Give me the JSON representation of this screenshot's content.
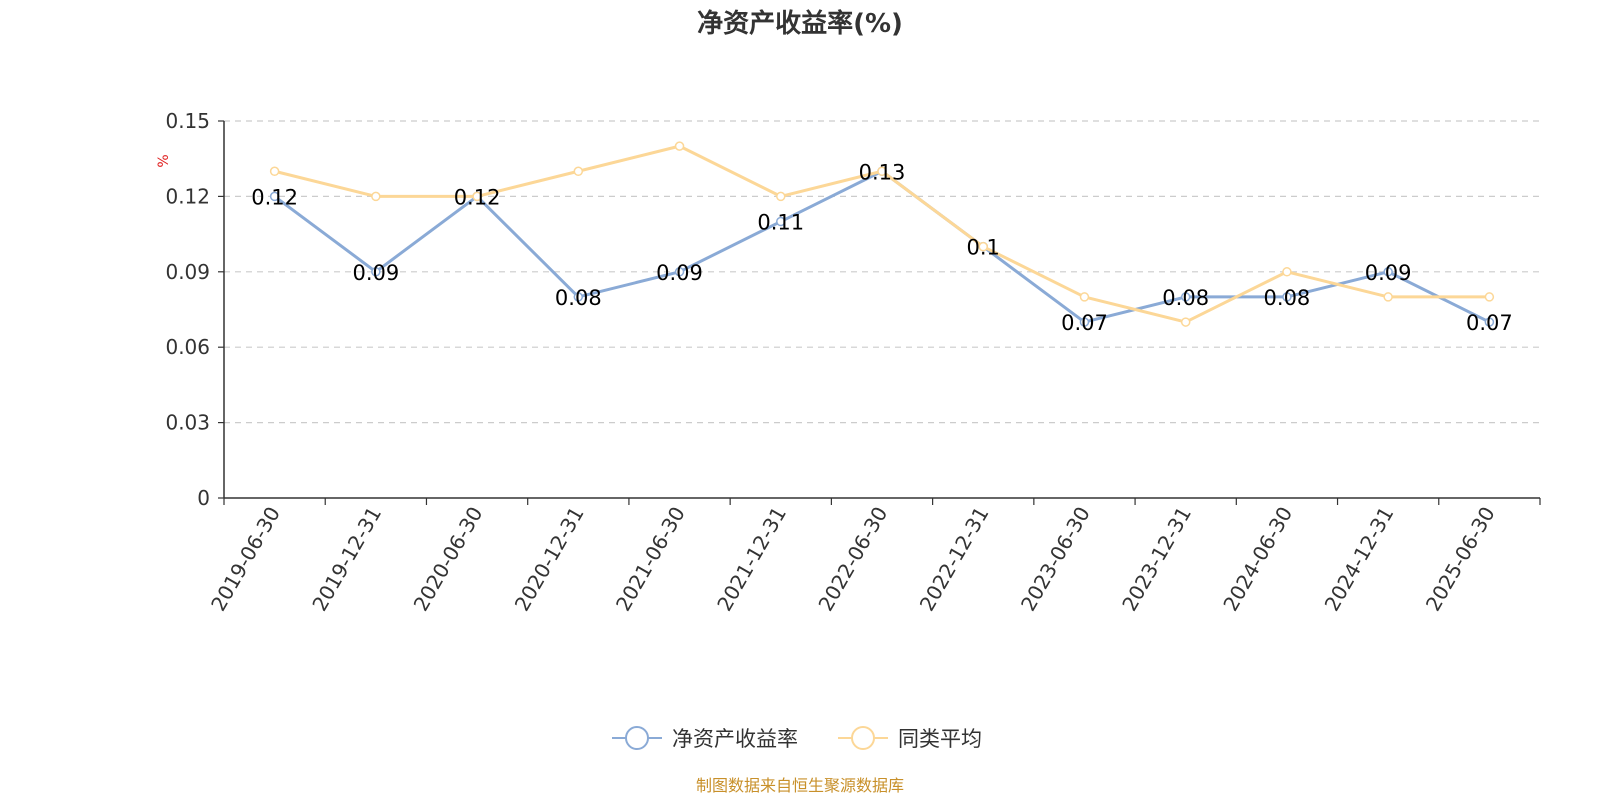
{
  "chart_data": {
    "type": "line",
    "title": "净资产收益率(%)",
    "ylabel": "%",
    "xlabel": "",
    "categories": [
      "2019-06-30",
      "2019-12-31",
      "2020-06-30",
      "2020-12-31",
      "2021-06-30",
      "2021-12-31",
      "2022-06-30",
      "2022-12-31",
      "2023-06-30",
      "2023-12-31",
      "2024-06-30",
      "2024-12-31",
      "2025-06-30"
    ],
    "ylim": [
      0,
      0.15
    ],
    "yticks": [
      "0",
      "0.03",
      "0.06",
      "0.09",
      "0.12",
      "0.15"
    ],
    "grid": true,
    "legend_position": "bottom-center",
    "series": [
      {
        "name": "净资产收益率",
        "color": "#8aaad6",
        "values": [
          0.12,
          0.09,
          0.12,
          0.08,
          0.09,
          0.11,
          0.13,
          0.1,
          0.07,
          0.08,
          0.08,
          0.09,
          0.07
        ],
        "labels": [
          "0.12",
          "0.09",
          "0.12",
          "0.08",
          "0.09",
          "0.11",
          "0.13",
          "0.1",
          "0.07",
          "0.08",
          "0.08",
          "0.09",
          "0.07"
        ]
      },
      {
        "name": "同类平均",
        "color": "#fcd797",
        "values": [
          0.13,
          0.12,
          0.12,
          0.13,
          0.14,
          0.12,
          0.13,
          0.1,
          0.08,
          0.07,
          0.09,
          0.08,
          0.08
        ]
      }
    ]
  },
  "footer": {
    "source": "制图数据来自恒生聚源数据库"
  }
}
